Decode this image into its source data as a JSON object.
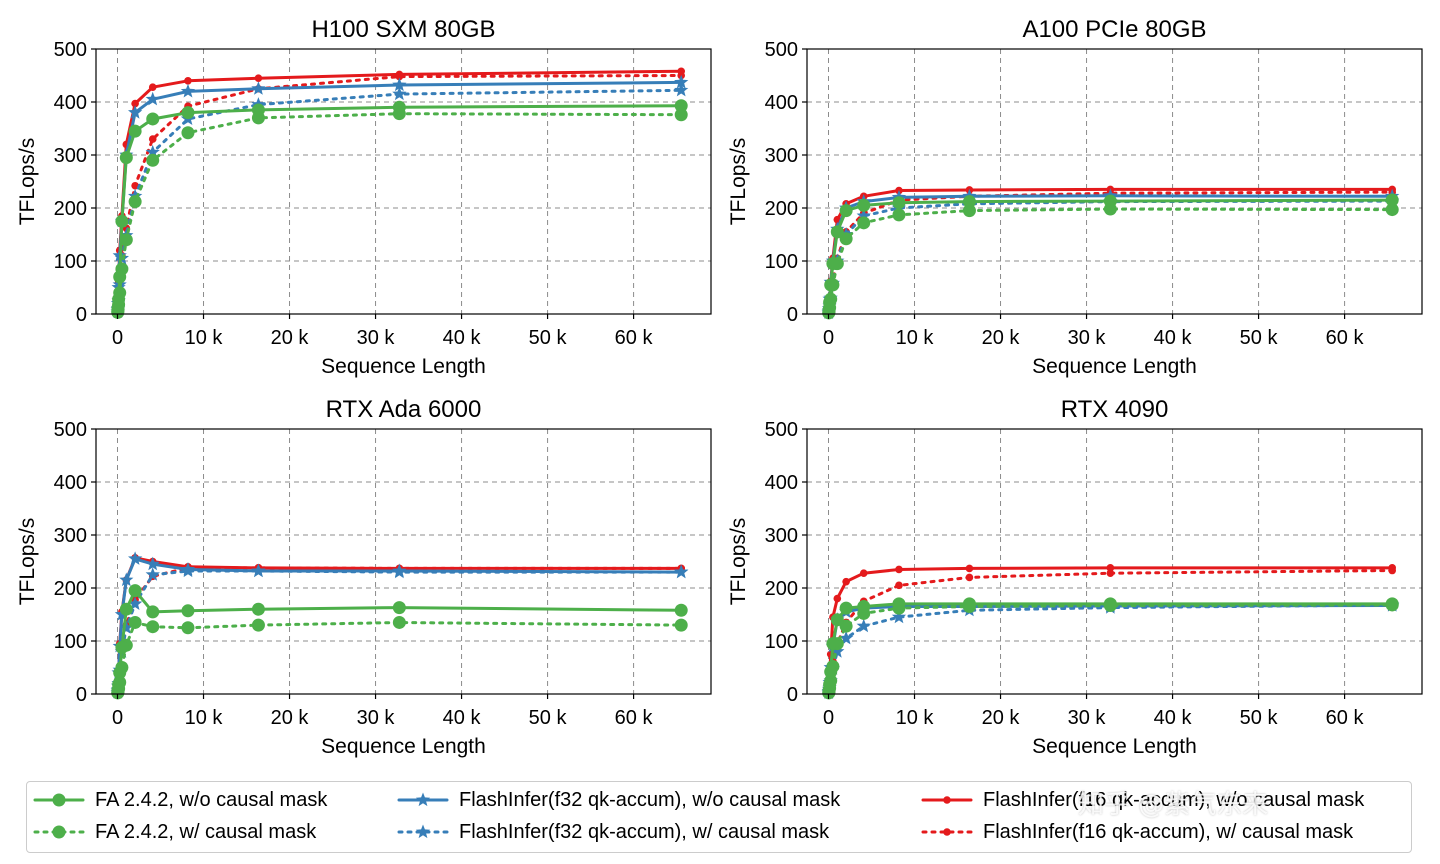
{
  "colors": {
    "green": "#4daf4a",
    "blue": "#377eb8",
    "red": "#e41a1c"
  },
  "legend": [
    {
      "name": "FA 2.4.2, w/o causal mask",
      "color": "#4daf4a",
      "style": "solid",
      "marker": "circle"
    },
    {
      "name": "FA 2.4.2, w/ causal mask",
      "color": "#4daf4a",
      "style": "dotted",
      "marker": "circle"
    },
    {
      "name": "FlashInfer(f32 qk-accum), w/o causal mask",
      "color": "#377eb8",
      "style": "solid",
      "marker": "star"
    },
    {
      "name": "FlashInfer(f32 qk-accum), w/ causal mask",
      "color": "#377eb8",
      "style": "dotted",
      "marker": "star"
    },
    {
      "name": "FlashInfer(f16 qk-accum), w/o causal mask",
      "color": "#e41a1c",
      "style": "solid",
      "marker": "dot"
    },
    {
      "name": "FlashInfer(f16 qk-accum), w/ causal mask",
      "color": "#e41a1c",
      "style": "dotted",
      "marker": "dot"
    }
  ],
  "watermark": "知乎 @紫气东来",
  "chart_data": [
    {
      "type": "line",
      "title": "H100 SXM 80GB",
      "xlabel": "Sequence Length",
      "ylabel": "TFLops/s",
      "xlim": [
        -2500,
        69000
      ],
      "ylim": [
        0,
        500
      ],
      "xticks": [
        0,
        10000,
        20000,
        30000,
        40000,
        50000,
        60000
      ],
      "xticklabels": [
        "0",
        "10 k",
        "20 k",
        "30 k",
        "40 k",
        "50 k",
        "60 k"
      ],
      "yticks": [
        0,
        100,
        200,
        300,
        400,
        500
      ],
      "grid": true,
      "x": [
        32,
        64,
        128,
        256,
        512,
        1024,
        2048,
        4096,
        8192,
        16384,
        32768,
        65536
      ],
      "series": [
        {
          "name": "FA 2.4.2, w/o causal mask",
          "values": [
            5,
            12,
            28,
            70,
            175,
            295,
            345,
            368,
            380,
            385,
            390,
            393
          ]
        },
        {
          "name": "FA 2.4.2, w/ causal mask",
          "values": [
            3,
            8,
            18,
            40,
            85,
            140,
            212,
            290,
            342,
            370,
            378,
            376
          ]
        },
        {
          "name": "FlashInfer(f32 qk-accum), w/o causal mask",
          "values": [
            8,
            20,
            50,
            110,
            175,
            300,
            380,
            405,
            420,
            425,
            432,
            437
          ]
        },
        {
          "name": "FlashInfer(f32 qk-accum), w/ causal mask",
          "values": [
            4,
            10,
            25,
            55,
            105,
            148,
            222,
            305,
            368,
            395,
            415,
            422
          ]
        },
        {
          "name": "FlashInfer(f16 qk-accum), w/o causal mask",
          "values": [
            9,
            24,
            60,
            120,
            185,
            320,
            397,
            428,
            440,
            445,
            452,
            458
          ]
        },
        {
          "name": "FlashInfer(f16 qk-accum), w/ causal mask",
          "values": [
            5,
            12,
            28,
            60,
            110,
            162,
            242,
            330,
            392,
            425,
            448,
            450
          ]
        }
      ]
    },
    {
      "type": "line",
      "title": "A100 PCIe 80GB",
      "xlabel": "Sequence Length",
      "ylabel": "TFLops/s",
      "xlim": [
        -2500,
        69000
      ],
      "ylim": [
        0,
        500
      ],
      "xticks": [
        0,
        10000,
        20000,
        30000,
        40000,
        50000,
        60000
      ],
      "xticklabels": [
        "0",
        "10 k",
        "20 k",
        "30 k",
        "40 k",
        "50 k",
        "60 k"
      ],
      "yticks": [
        0,
        100,
        200,
        300,
        400,
        500
      ],
      "grid": true,
      "x": [
        32,
        64,
        128,
        256,
        512,
        1024,
        2048,
        4096,
        8192,
        16384,
        32768,
        65536
      ],
      "series": [
        {
          "name": "FA 2.4.2, w/o causal mask",
          "values": [
            3,
            8,
            22,
            55,
            95,
            155,
            195,
            205,
            210,
            212,
            213,
            215
          ]
        },
        {
          "name": "FA 2.4.2, w/ causal mask",
          "values": [
            2,
            5,
            12,
            28,
            55,
            95,
            142,
            172,
            187,
            195,
            198,
            197
          ]
        },
        {
          "name": "FlashInfer(f32 qk-accum), w/o causal mask",
          "values": [
            4,
            10,
            28,
            60,
            100,
            160,
            200,
            212,
            220,
            222,
            223,
            222
          ]
        },
        {
          "name": "FlashInfer(f32 qk-accum), w/ causal mask",
          "values": [
            2,
            6,
            15,
            30,
            58,
            100,
            150,
            185,
            200,
            208,
            212,
            213
          ]
        },
        {
          "name": "FlashInfer(f16 qk-accum), w/o causal mask",
          "values": [
            5,
            12,
            30,
            62,
            105,
            178,
            208,
            222,
            233,
            234,
            235,
            235
          ]
        },
        {
          "name": "FlashInfer(f16 qk-accum), w/ causal mask",
          "values": [
            3,
            7,
            16,
            32,
            60,
            105,
            155,
            190,
            215,
            222,
            228,
            230
          ]
        }
      ]
    },
    {
      "type": "line",
      "title": "RTX Ada 6000",
      "xlabel": "Sequence Length",
      "ylabel": "TFLops/s",
      "xlim": [
        -2500,
        69000
      ],
      "ylim": [
        0,
        500
      ],
      "xticks": [
        0,
        10000,
        20000,
        30000,
        40000,
        50000,
        60000
      ],
      "xticklabels": [
        "0",
        "10 k",
        "20 k",
        "30 k",
        "40 k",
        "50 k",
        "60 k"
      ],
      "yticks": [
        0,
        100,
        200,
        300,
        400,
        500
      ],
      "grid": true,
      "x": [
        32,
        64,
        128,
        256,
        512,
        1024,
        2048,
        4096,
        8192,
        16384,
        32768,
        65536
      ],
      "series": [
        {
          "name": "FA 2.4.2, w/o causal mask",
          "values": [
            3,
            8,
            18,
            40,
            88,
            160,
            195,
            155,
            157,
            160,
            163,
            158
          ]
        },
        {
          "name": "FA 2.4.2, w/ causal mask",
          "values": [
            2,
            5,
            10,
            22,
            50,
            92,
            135,
            127,
            125,
            130,
            135,
            130
          ]
        },
        {
          "name": "FlashInfer(f32 qk-accum), w/o causal mask",
          "values": [
            6,
            15,
            40,
            90,
            150,
            215,
            255,
            245,
            235,
            232,
            232,
            230
          ]
        },
        {
          "name": "FlashInfer(f32 qk-accum), w/ causal mask",
          "values": [
            3,
            8,
            20,
            45,
            80,
            125,
            170,
            225,
            232,
            232,
            230,
            230
          ]
        },
        {
          "name": "FlashInfer(f16 qk-accum), w/o causal mask",
          "values": [
            7,
            16,
            42,
            95,
            155,
            215,
            257,
            250,
            240,
            238,
            237,
            237
          ]
        },
        {
          "name": "FlashInfer(f16 qk-accum), w/ causal mask",
          "values": [
            3,
            8,
            22,
            48,
            82,
            130,
            178,
            222,
            238,
            238,
            237,
            237
          ]
        }
      ]
    },
    {
      "type": "line",
      "title": "RTX 4090",
      "xlabel": "Sequence Length",
      "ylabel": "TFLops/s",
      "xlim": [
        -2500,
        69000
      ],
      "ylim": [
        0,
        500
      ],
      "xticks": [
        0,
        10000,
        20000,
        30000,
        40000,
        50000,
        60000
      ],
      "xticklabels": [
        "0",
        "10 k",
        "20 k",
        "30 k",
        "40 k",
        "50 k",
        "60 k"
      ],
      "yticks": [
        0,
        100,
        200,
        300,
        400,
        500
      ],
      "grid": true,
      "x": [
        32,
        64,
        128,
        256,
        512,
        1024,
        2048,
        4096,
        8192,
        16384,
        32768,
        65536
      ],
      "series": [
        {
          "name": "FA 2.4.2, w/o causal mask",
          "values": [
            3,
            7,
            18,
            42,
            95,
            140,
            162,
            165,
            170,
            170,
            170,
            170
          ]
        },
        {
          "name": "FA 2.4.2, w/ causal mask",
          "values": [
            2,
            5,
            11,
            25,
            52,
            95,
            128,
            152,
            162,
            165,
            167,
            168
          ]
        },
        {
          "name": "FlashInfer(f32 qk-accum), w/o causal mask",
          "values": [
            4,
            9,
            22,
            50,
            90,
            140,
            155,
            162,
            165,
            165,
            166,
            167
          ]
        },
        {
          "name": "FlashInfer(f32 qk-accum), w/ causal mask",
          "values": [
            2,
            5,
            12,
            25,
            48,
            80,
            105,
            128,
            145,
            158,
            163,
            168
          ]
        },
        {
          "name": "FlashInfer(f16 qk-accum), w/o causal mask",
          "values": [
            5,
            12,
            32,
            75,
            145,
            180,
            212,
            228,
            235,
            237,
            238,
            238
          ]
        },
        {
          "name": "FlashInfer(f16 qk-accum), w/ causal mask",
          "values": [
            3,
            6,
            15,
            32,
            62,
            95,
            135,
            175,
            205,
            220,
            228,
            233
          ]
        }
      ]
    }
  ]
}
